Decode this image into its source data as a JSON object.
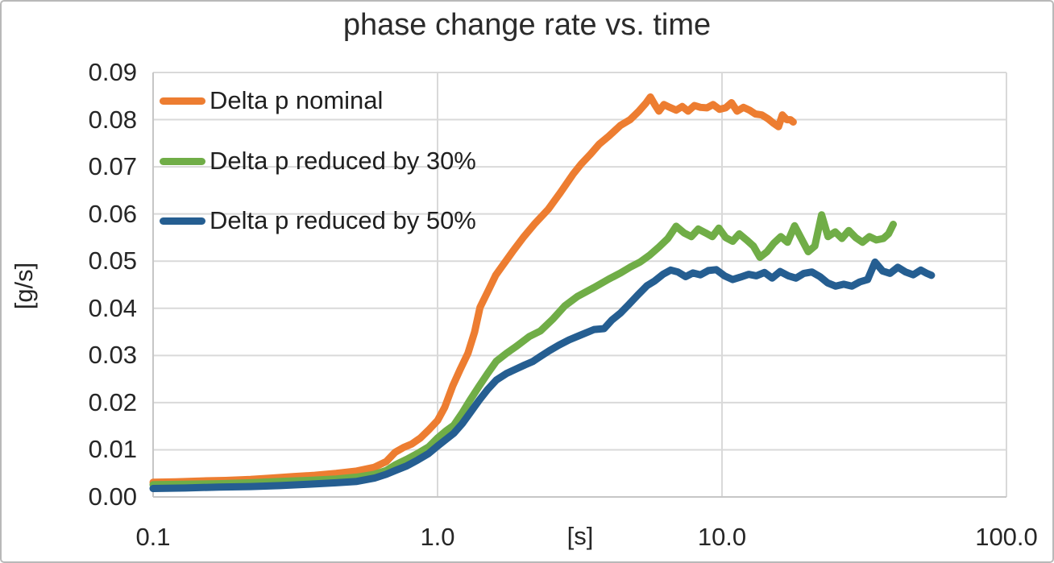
{
  "figure": {
    "background": "#FFFFFF",
    "border_color": "#B9B9B9"
  },
  "chart_data": {
    "type": "line",
    "title": "phase change rate vs. time",
    "xlabel": "[s]",
    "ylabel": "[g/s]",
    "x_scale": "log",
    "xlim": [
      0.1,
      100.0
    ],
    "ylim": [
      0.0,
      0.09
    ],
    "grid": true,
    "grid_color": "#D9D9D9",
    "axis_color": "#C6C6C6",
    "legend_position": "top-left-inside",
    "x_ticks": [
      {
        "value": 0.1,
        "label": "0.1"
      },
      {
        "value": 1.0,
        "label": "1.0"
      },
      {
        "value": 10.0,
        "label": "10.0"
      },
      {
        "value": 100.0,
        "label": "100.0"
      }
    ],
    "y_ticks": [
      {
        "value": 0.0,
        "label": "0.00"
      },
      {
        "value": 0.01,
        "label": "0.01"
      },
      {
        "value": 0.02,
        "label": "0.02"
      },
      {
        "value": 0.03,
        "label": "0.03"
      },
      {
        "value": 0.04,
        "label": "0.04"
      },
      {
        "value": 0.05,
        "label": "0.05"
      },
      {
        "value": 0.06,
        "label": "0.06"
      },
      {
        "value": 0.07,
        "label": "0.07"
      },
      {
        "value": 0.08,
        "label": "0.08"
      },
      {
        "value": 0.09,
        "label": "0.09"
      }
    ],
    "series": [
      {
        "name": "Delta p nominal",
        "color": "#ED7D31",
        "points": [
          [
            0.1,
            0.0031
          ],
          [
            0.12,
            0.0032
          ],
          [
            0.15,
            0.0034
          ],
          [
            0.18,
            0.0035
          ],
          [
            0.22,
            0.0037
          ],
          [
            0.26,
            0.004
          ],
          [
            0.31,
            0.0043
          ],
          [
            0.37,
            0.0046
          ],
          [
            0.44,
            0.005
          ],
          [
            0.52,
            0.0055
          ],
          [
            0.6,
            0.0063
          ],
          [
            0.66,
            0.0075
          ],
          [
            0.71,
            0.0095
          ],
          [
            0.76,
            0.0105
          ],
          [
            0.81,
            0.0112
          ],
          [
            0.87,
            0.0125
          ],
          [
            0.93,
            0.0142
          ],
          [
            1.0,
            0.0162
          ],
          [
            1.06,
            0.019
          ],
          [
            1.13,
            0.0235
          ],
          [
            1.2,
            0.027
          ],
          [
            1.28,
            0.0305
          ],
          [
            1.35,
            0.035
          ],
          [
            1.41,
            0.0402
          ],
          [
            1.5,
            0.0435
          ],
          [
            1.6,
            0.047
          ],
          [
            1.7,
            0.0492
          ],
          [
            1.85,
            0.0523
          ],
          [
            2.0,
            0.055
          ],
          [
            2.2,
            0.058
          ],
          [
            2.45,
            0.061
          ],
          [
            2.7,
            0.0645
          ],
          [
            3.0,
            0.0685
          ],
          [
            3.2,
            0.0706
          ],
          [
            3.45,
            0.0727
          ],
          [
            3.7,
            0.0748
          ],
          [
            4.0,
            0.0765
          ],
          [
            4.4,
            0.0788
          ],
          [
            4.75,
            0.08
          ],
          [
            5.1,
            0.0818
          ],
          [
            5.4,
            0.0835
          ],
          [
            5.6,
            0.0848
          ],
          [
            5.8,
            0.0832
          ],
          [
            6.0,
            0.0818
          ],
          [
            6.25,
            0.0832
          ],
          [
            6.55,
            0.0826
          ],
          [
            6.9,
            0.082
          ],
          [
            7.25,
            0.0828
          ],
          [
            7.6,
            0.0818
          ],
          [
            8.0,
            0.083
          ],
          [
            8.4,
            0.0826
          ],
          [
            8.85,
            0.0825
          ],
          [
            9.3,
            0.0832
          ],
          [
            9.8,
            0.0822
          ],
          [
            10.3,
            0.0825
          ],
          [
            10.8,
            0.0836
          ],
          [
            11.3,
            0.0818
          ],
          [
            11.9,
            0.0826
          ],
          [
            12.5,
            0.082
          ],
          [
            13.1,
            0.0812
          ],
          [
            13.8,
            0.081
          ],
          [
            14.5,
            0.0802
          ],
          [
            15.2,
            0.0792
          ],
          [
            15.8,
            0.0785
          ],
          [
            16.3,
            0.081
          ],
          [
            16.9,
            0.08
          ],
          [
            17.4,
            0.08
          ],
          [
            17.8,
            0.0795
          ]
        ]
      },
      {
        "name": "Delta p reduced by 30%",
        "color": "#70AD47",
        "points": [
          [
            0.1,
            0.0026
          ],
          [
            0.13,
            0.0027
          ],
          [
            0.17,
            0.0028
          ],
          [
            0.22,
            0.003
          ],
          [
            0.28,
            0.0033
          ],
          [
            0.35,
            0.0035
          ],
          [
            0.44,
            0.0038
          ],
          [
            0.52,
            0.0042
          ],
          [
            0.6,
            0.0048
          ],
          [
            0.66,
            0.0056
          ],
          [
            0.71,
            0.0068
          ],
          [
            0.78,
            0.008
          ],
          [
            0.85,
            0.0092
          ],
          [
            0.93,
            0.0106
          ],
          [
            1.0,
            0.0125
          ],
          [
            1.07,
            0.014
          ],
          [
            1.14,
            0.0152
          ],
          [
            1.22,
            0.0178
          ],
          [
            1.3,
            0.0205
          ],
          [
            1.4,
            0.0235
          ],
          [
            1.5,
            0.0262
          ],
          [
            1.61,
            0.0288
          ],
          [
            1.75,
            0.0305
          ],
          [
            1.9,
            0.032
          ],
          [
            2.1,
            0.034
          ],
          [
            2.3,
            0.0352
          ],
          [
            2.55,
            0.0378
          ],
          [
            2.8,
            0.0405
          ],
          [
            3.1,
            0.0425
          ],
          [
            3.55,
            0.0444
          ],
          [
            4.0,
            0.0462
          ],
          [
            4.4,
            0.0475
          ],
          [
            4.75,
            0.0487
          ],
          [
            5.15,
            0.0498
          ],
          [
            5.55,
            0.0512
          ],
          [
            6.0,
            0.053
          ],
          [
            6.45,
            0.0548
          ],
          [
            6.9,
            0.0574
          ],
          [
            7.35,
            0.056
          ],
          [
            7.8,
            0.0552
          ],
          [
            8.25,
            0.0568
          ],
          [
            8.75,
            0.056
          ],
          [
            9.25,
            0.0552
          ],
          [
            9.75,
            0.057
          ],
          [
            10.3,
            0.055
          ],
          [
            10.9,
            0.0542
          ],
          [
            11.5,
            0.0558
          ],
          [
            12.2,
            0.0545
          ],
          [
            12.9,
            0.0532
          ],
          [
            13.6,
            0.0508
          ],
          [
            14.4,
            0.052
          ],
          [
            15.2,
            0.0538
          ],
          [
            16.1,
            0.0552
          ],
          [
            17.0,
            0.054
          ],
          [
            18.0,
            0.0575
          ],
          [
            19.0,
            0.0548
          ],
          [
            20.1,
            0.052
          ],
          [
            21.2,
            0.0532
          ],
          [
            22.4,
            0.0598
          ],
          [
            23.6,
            0.0552
          ],
          [
            25.0,
            0.0562
          ],
          [
            26.4,
            0.0548
          ],
          [
            27.9,
            0.0565
          ],
          [
            29.5,
            0.055
          ],
          [
            31.2,
            0.054
          ],
          [
            33.0,
            0.0552
          ],
          [
            34.9,
            0.0545
          ],
          [
            36.9,
            0.0548
          ],
          [
            38.5,
            0.0558
          ],
          [
            40.0,
            0.0578
          ]
        ]
      },
      {
        "name": "Delta p reduced by 50%",
        "color": "#255E91",
        "points": [
          [
            0.1,
            0.0018
          ],
          [
            0.13,
            0.0019
          ],
          [
            0.17,
            0.0021
          ],
          [
            0.22,
            0.0022
          ],
          [
            0.28,
            0.0024
          ],
          [
            0.35,
            0.0027
          ],
          [
            0.44,
            0.003
          ],
          [
            0.52,
            0.0033
          ],
          [
            0.6,
            0.004
          ],
          [
            0.66,
            0.0048
          ],
          [
            0.71,
            0.0056
          ],
          [
            0.78,
            0.0066
          ],
          [
            0.85,
            0.0078
          ],
          [
            0.93,
            0.0092
          ],
          [
            1.0,
            0.0108
          ],
          [
            1.07,
            0.0122
          ],
          [
            1.14,
            0.0135
          ],
          [
            1.22,
            0.0155
          ],
          [
            1.3,
            0.0178
          ],
          [
            1.4,
            0.0205
          ],
          [
            1.5,
            0.0228
          ],
          [
            1.61,
            0.0248
          ],
          [
            1.75,
            0.0262
          ],
          [
            1.9,
            0.0272
          ],
          [
            2.03,
            0.028
          ],
          [
            2.16,
            0.0287
          ],
          [
            2.3,
            0.0298
          ],
          [
            2.47,
            0.031
          ],
          [
            2.67,
            0.0322
          ],
          [
            2.9,
            0.0333
          ],
          [
            3.15,
            0.0342
          ],
          [
            3.55,
            0.0355
          ],
          [
            3.85,
            0.0357
          ],
          [
            4.1,
            0.0375
          ],
          [
            4.4,
            0.039
          ],
          [
            4.7,
            0.0408
          ],
          [
            5.05,
            0.0428
          ],
          [
            5.45,
            0.0448
          ],
          [
            5.8,
            0.0458
          ],
          [
            6.2,
            0.0472
          ],
          [
            6.6,
            0.0481
          ],
          [
            7.0,
            0.0477
          ],
          [
            7.45,
            0.0467
          ],
          [
            7.9,
            0.0475
          ],
          [
            8.4,
            0.0471
          ],
          [
            8.95,
            0.048
          ],
          [
            9.55,
            0.0482
          ],
          [
            10.2,
            0.0469
          ],
          [
            10.9,
            0.0461
          ],
          [
            11.6,
            0.0466
          ],
          [
            12.4,
            0.0472
          ],
          [
            13.2,
            0.0469
          ],
          [
            14.1,
            0.0476
          ],
          [
            15.0,
            0.0464
          ],
          [
            16.0,
            0.0478
          ],
          [
            17.1,
            0.0469
          ],
          [
            18.2,
            0.0464
          ],
          [
            19.4,
            0.0474
          ],
          [
            20.7,
            0.0477
          ],
          [
            22.1,
            0.0467
          ],
          [
            23.5,
            0.0454
          ],
          [
            25.1,
            0.0447
          ],
          [
            26.8,
            0.0451
          ],
          [
            28.6,
            0.0447
          ],
          [
            30.5,
            0.0456
          ],
          [
            32.5,
            0.0461
          ],
          [
            34.5,
            0.0498
          ],
          [
            36.7,
            0.0479
          ],
          [
            39.0,
            0.0474
          ],
          [
            41.5,
            0.0487
          ],
          [
            44.2,
            0.0477
          ],
          [
            47.0,
            0.0471
          ],
          [
            50.0,
            0.0481
          ],
          [
            52.5,
            0.0474
          ],
          [
            54.5,
            0.047
          ]
        ]
      }
    ]
  }
}
